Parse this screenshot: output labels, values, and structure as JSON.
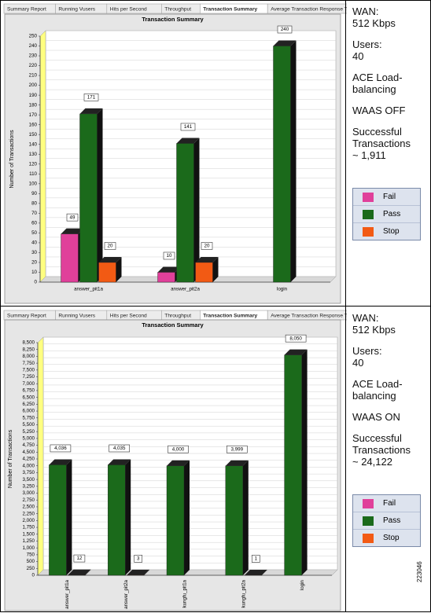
{
  "tabs": [
    "Summary Report",
    "Running Vusers",
    "Hits per Second",
    "Throughput",
    "Transaction Summary",
    "Average Transaction Response Time"
  ],
  "panels": [
    {
      "blocks": [
        [
          "WAN:",
          "512 Kbps"
        ],
        [
          "Users:",
          "40"
        ],
        [
          "ACE Load-",
          "balancing"
        ],
        [
          "WAAS OFF"
        ],
        [
          "Successful",
          "Transactions",
          "~ 1,911"
        ]
      ]
    },
    {
      "blocks": [
        [
          "WAN:",
          "512 Kbps"
        ],
        [
          "Users:",
          "40"
        ],
        [
          "ACE Load-",
          "balancing"
        ],
        [
          "WAAS ON"
        ],
        [
          "Successful",
          "Transactions",
          "~ 24,122"
        ]
      ]
    }
  ],
  "figure_id": "223046",
  "chart_data": [
    {
      "type": "bar",
      "title": "Transaction Summary",
      "y_label": "Number of Transactions",
      "categories": [
        "answer_pit1a",
        "answer_pit2a",
        "login"
      ],
      "series": [
        {
          "name": "Fail",
          "color": "#e0409a",
          "values": [
            49,
            10,
            null
          ]
        },
        {
          "name": "Pass",
          "color": "#1b6a1b",
          "values": [
            171,
            141,
            240
          ]
        },
        {
          "name": "Stop",
          "color": "#f25a14",
          "values": [
            20,
            20,
            null
          ]
        }
      ],
      "ylim": [
        0,
        250
      ],
      "yticks": [
        0,
        10,
        20,
        30,
        40,
        50,
        60,
        70,
        80,
        90,
        100,
        110,
        120,
        130,
        140,
        150,
        160,
        170,
        180,
        190,
        200,
        210,
        220,
        230,
        240,
        250
      ],
      "grid": true
    },
    {
      "type": "bar",
      "title": "Transaction Summary",
      "y_label": "Number of Transactions",
      "categories": [
        "answer_pit1a",
        "answer_pit2a",
        "kungfu_pit1a",
        "kungfu_pit2a",
        "login"
      ],
      "series": [
        {
          "name": "Fail",
          "color": "#e0409a",
          "values": [
            null,
            null,
            null,
            null,
            null
          ]
        },
        {
          "name": "Pass",
          "color": "#1b6a1b",
          "values": [
            4036,
            4035,
            4000,
            3999,
            8050
          ],
          "value_labels": [
            "4,036",
            "4,035",
            "4,000",
            "3,999",
            "8,050"
          ]
        },
        {
          "name": "Stop",
          "color": "#f25a14",
          "values": [
            12,
            3,
            null,
            1,
            null
          ]
        }
      ],
      "ylim": [
        0,
        8500
      ],
      "yticks": [
        0,
        250,
        500,
        750,
        {
          "value": 1000,
          "label": "1,000"
        },
        {
          "value": 1250,
          "label": "1,250"
        },
        {
          "value": 1500,
          "label": "1,500"
        },
        {
          "value": 1750,
          "label": "1,750"
        },
        {
          "value": 2000,
          "label": "2,000"
        },
        {
          "value": 2250,
          "label": "2,250"
        },
        {
          "value": 2500,
          "label": "2,500"
        },
        {
          "value": 2750,
          "label": "2,750"
        },
        {
          "value": 3000,
          "label": "3,000"
        },
        {
          "value": 3250,
          "label": "3,250"
        },
        {
          "value": 3500,
          "label": "3,500"
        },
        {
          "value": 3750,
          "label": "3,750"
        },
        {
          "value": 4000,
          "label": "4,000"
        },
        {
          "value": 4250,
          "label": "4,250"
        },
        {
          "value": 4500,
          "label": "4,500"
        },
        {
          "value": 4750,
          "label": "4,750"
        },
        {
          "value": 5000,
          "label": "5,000"
        },
        {
          "value": 5250,
          "label": "5,250"
        },
        {
          "value": 5500,
          "label": "5,500"
        },
        {
          "value": 5750,
          "label": "5,750"
        },
        {
          "value": 6000,
          "label": "6,000"
        },
        {
          "value": 6250,
          "label": "6,250"
        },
        {
          "value": 6500,
          "label": "6,500"
        },
        {
          "value": 6750,
          "label": "6,750"
        },
        {
          "value": 7000,
          "label": "7,000"
        },
        {
          "value": 7250,
          "label": "7,250"
        },
        {
          "value": 7500,
          "label": "7,500"
        },
        {
          "value": 7750,
          "label": "7,750"
        },
        {
          "value": 8000,
          "label": "8,000"
        },
        {
          "value": 8250,
          "label": "8,250"
        },
        {
          "value": 8500,
          "label": "8,500"
        }
      ],
      "grid": true
    }
  ]
}
